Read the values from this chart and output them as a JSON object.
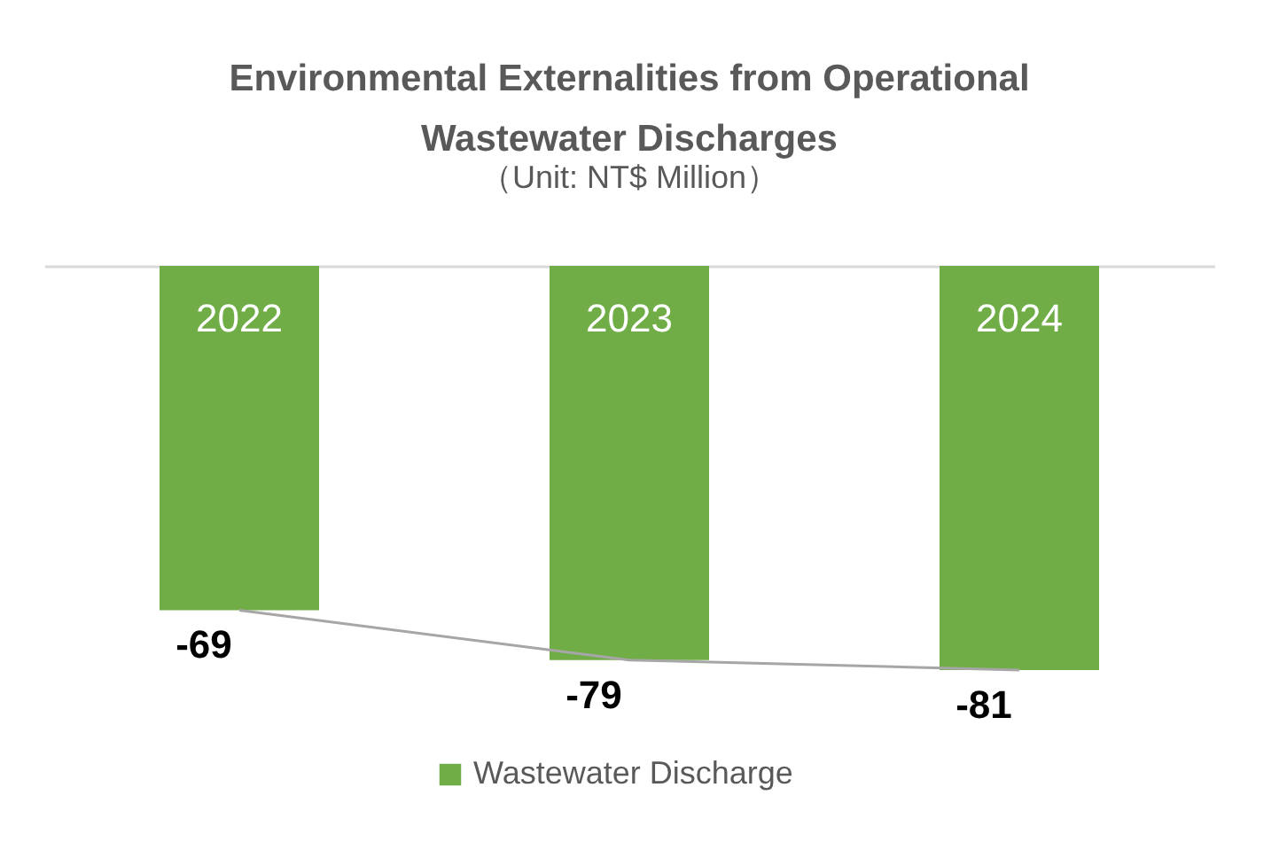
{
  "chart_data": {
    "type": "bar",
    "title": [
      "Environmental Externalities from Operational",
      "Wastewater Discharges"
    ],
    "subtitle": "（Unit: NT$ Million）",
    "categories": [
      "2022",
      "2023",
      "2024"
    ],
    "series": [
      {
        "name": "Wastewater Discharge",
        "color": "#70ad47",
        "values": [
          -69,
          -79,
          -81
        ],
        "value_labels": [
          "-69",
          "-79",
          "-81"
        ]
      },
      {
        "type": "line",
        "color": "#a6a6a6",
        "values": [
          -69,
          -79,
          -81
        ]
      }
    ],
    "tick_labels": "x",
    "legend": "bottom"
  }
}
